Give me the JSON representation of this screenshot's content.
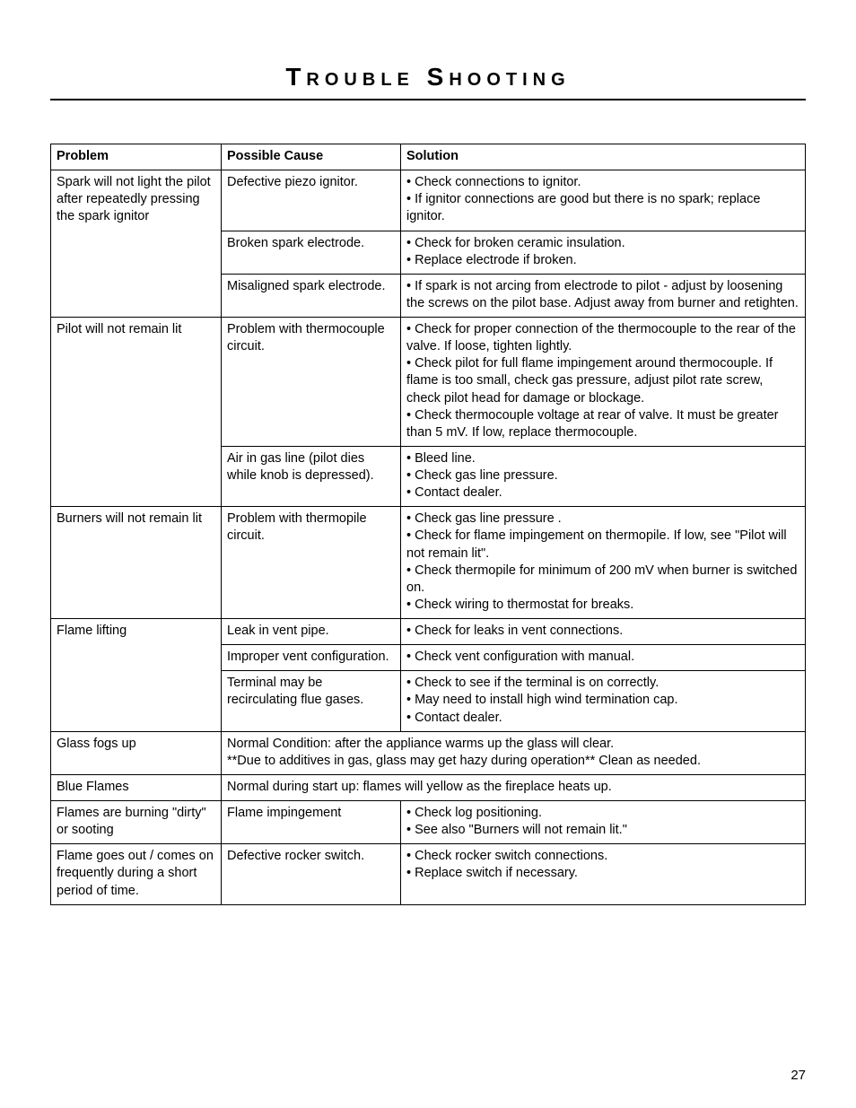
{
  "page": {
    "title": "Trouble Shooting",
    "page_number": "27",
    "headers": {
      "problem": "Problem",
      "cause": "Possible Cause",
      "solution": "Solution"
    },
    "rows": [
      {
        "problem": "Spark will not light the pilot after repeatedly pressing the spark ignitor",
        "subrows": [
          {
            "cause": "Defective piezo ignitor.",
            "solution": "• Check connections to ignitor.\n• If ignitor connections are good but there is no spark; replace ignitor."
          },
          {
            "cause": "Broken spark electrode.",
            "solution": "• Check for broken ceramic insulation.\n• Replace electrode if broken."
          },
          {
            "cause": "Misaligned spark electrode.",
            "solution": "• If spark is not arcing from electrode to pilot - adjust by loosening the screws on the pilot base. Adjust away from burner and retighten."
          }
        ]
      },
      {
        "problem": "Pilot will not remain lit",
        "subrows": [
          {
            "cause": "Problem with thermocouple circuit.",
            "solution": "• Check for proper connection of the thermocouple to the rear of the valve. If loose, tighten lightly.\n• Check pilot for full flame impingement around thermocouple.  If flame is too small, check gas pressure, adjust pilot rate screw, check pilot head for damage or blockage.\n• Check thermocouple voltage at rear of valve. It must be greater than 5 mV.  If low, replace thermocouple."
          },
          {
            "cause": "Air in gas line (pilot dies while knob is depressed).",
            "solution": "• Bleed line.\n• Check gas line pressure.\n• Contact dealer."
          }
        ]
      },
      {
        "problem": "Burners will not remain lit",
        "subrows": [
          {
            "cause": "Problem with thermopile circuit.",
            "solution": "• Check gas line pressure .\n• Check for flame impingement on thermopile. If low, see \"Pilot will not remain lit\".\n• Check thermopile for minimum of 200 mV when burner is switched on.\n• Check wiring to thermostat for breaks."
          }
        ]
      },
      {
        "problem": "Flame lifting",
        "subrows": [
          {
            "cause": "Leak in vent pipe.",
            "solution": "• Check for leaks in vent connections."
          },
          {
            "cause": "Improper vent configuration.",
            "solution": "• Check vent configuration with manual."
          },
          {
            "cause": "Terminal may be recirculating flue gases.",
            "solution": "• Check to see if the terminal is on correctly.\n• May need to install high wind termination cap.\n• Contact dealer."
          }
        ]
      },
      {
        "problem": "Glass fogs up",
        "merged": "Normal Condition: after the appliance warms up the glass will clear.\n**Due to additives in gas, glass may get hazy during operation** Clean as needed."
      },
      {
        "problem": "Blue Flames",
        "merged": "Normal during start up: flames will yellow as the fireplace heats up."
      },
      {
        "problem": "Flames are burning \"dirty\" or sooting",
        "subrows": [
          {
            "cause": "Flame impingement",
            "solution": "• Check log positioning.\n• See also \"Burners will not remain lit.\""
          }
        ]
      },
      {
        "problem": "Flame goes out / comes on frequently during a short period of time.",
        "subrows": [
          {
            "cause": "Defective rocker switch.",
            "solution": "• Check rocker switch connections.\n• Replace switch if necessary."
          }
        ]
      }
    ]
  }
}
